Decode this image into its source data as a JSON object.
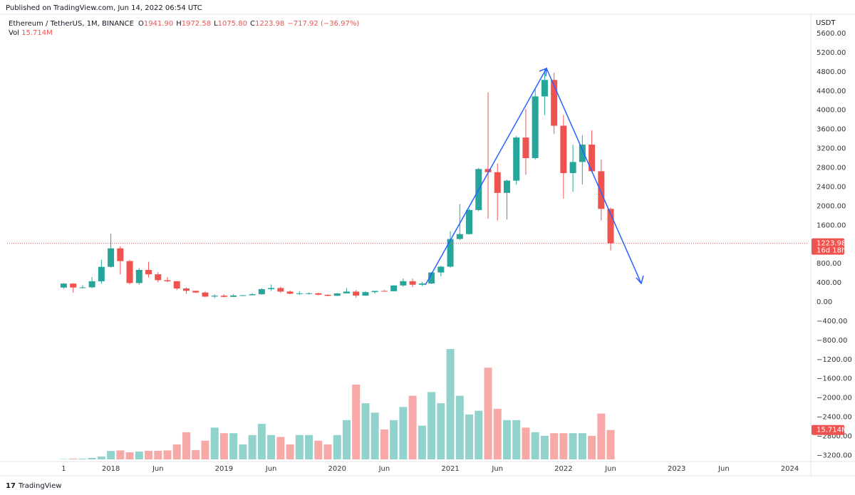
{
  "published": "Published on TradingView.com, Jun 14, 2022 06:54 UTC",
  "brand": "TradingView",
  "chart_data": {
    "type": "candlestick",
    "symbol": "Ethereum / TetherUS, 1M, BINANCE",
    "legend_items": [
      {
        "key": "O",
        "value": "1941.90"
      },
      {
        "key": "H",
        "value": "1972.58"
      },
      {
        "key": "L",
        "value": "1075.80"
      },
      {
        "key": "C",
        "value": "1223.98"
      }
    ],
    "change": "−717.92 (−36.97%)",
    "volume_legend": "Vol",
    "last_volume_label": "15.714M",
    "countdown": "16d 18h",
    "currency": "USDT",
    "up_color": "#26a69a",
    "down_color": "#ef5350",
    "volume_up_color": "#92d2cc",
    "volume_down_color": "#f7a9a7",
    "grid": false,
    "x": [
      "2017-08",
      "2017-09",
      "2017-10",
      "2017-11",
      "2017-12",
      "2018-01",
      "2018-02",
      "2018-03",
      "2018-04",
      "2018-05",
      "2018-06",
      "2018-07",
      "2018-08",
      "2018-09",
      "2018-10",
      "2018-11",
      "2018-12",
      "2019-01",
      "2019-02",
      "2019-03",
      "2019-04",
      "2019-05",
      "2019-06",
      "2019-07",
      "2019-08",
      "2019-09",
      "2019-10",
      "2019-11",
      "2019-12",
      "2020-01",
      "2020-02",
      "2020-03",
      "2020-04",
      "2020-05",
      "2020-06",
      "2020-07",
      "2020-08",
      "2020-09",
      "2020-10",
      "2020-11",
      "2020-12",
      "2021-01",
      "2021-02",
      "2021-03",
      "2021-04",
      "2021-05",
      "2021-06",
      "2021-07",
      "2021-08",
      "2021-09",
      "2021-10",
      "2021-11",
      "2021-12",
      "2022-01",
      "2022-02",
      "2022-03",
      "2022-04",
      "2022-05",
      "2022-06"
    ],
    "open": [
      301,
      384,
      302,
      306,
      432,
      733,
      1118,
      853,
      395,
      669,
      578,
      455,
      433,
      283,
      233,
      198,
      113,
      131,
      107,
      136,
      141,
      162,
      268,
      291,
      218,
      172,
      180,
      182,
      152,
      129,
      180,
      217,
      133,
      206,
      231,
      225,
      345,
      434,
      360,
      386,
      616,
      737,
      1314,
      1416,
      1918,
      2773,
      2707,
      2275,
      2531,
      3430,
      3001,
      4288,
      4631,
      3676,
      2688,
      2920,
      3282,
      2727,
      1941.9
    ],
    "high": [
      394,
      394,
      350,
      520,
      881,
      1424,
      1163,
      880,
      707,
      838,
      623,
      516,
      436,
      303,
      233,
      222,
      159,
      160,
      166,
      146,
      185,
      288,
      365,
      320,
      239,
      223,
      199,
      196,
      154,
      185,
      288,
      253,
      227,
      228,
      253,
      347,
      490,
      488,
      420,
      623,
      755,
      1476,
      2041,
      1943,
      2797,
      4372,
      2891,
      2551,
      3466,
      4027,
      4460,
      4868,
      4778,
      3900,
      3282,
      3479,
      3580,
      2970,
      1972.58
    ],
    "low": [
      278,
      197,
      283,
      287,
      380,
      717,
      575,
      366,
      362,
      509,
      410,
      417,
      250,
      167,
      187,
      100,
      82,
      101,
      102,
      124,
      138,
      152,
      230,
      190,
      162,
      151,
      157,
      139,
      117,
      126,
      180,
      86,
      130,
      176,
      216,
      225,
      318,
      308,
      332,
      372,
      534,
      715,
      1292,
      1406,
      1890,
      1736,
      1700,
      1718,
      2450,
      2651,
      2970,
      3900,
      3503,
      2159,
      2300,
      2451,
      2711,
      1700,
      1075.8
    ],
    "close": [
      384,
      302,
      306,
      432,
      733,
      1118,
      853,
      395,
      669,
      578,
      455,
      433,
      283,
      233,
      198,
      113,
      131,
      107,
      136,
      141,
      162,
      268,
      291,
      218,
      172,
      180,
      182,
      152,
      129,
      180,
      217,
      133,
      206,
      231,
      225,
      345,
      434,
      360,
      386,
      616,
      737,
      1314,
      1416,
      1918,
      2773,
      2707,
      2275,
      2531,
      3430,
      3001,
      4288,
      4631,
      3676,
      2688,
      2920,
      3282,
      2727,
      1941.9,
      1223.98
    ],
    "volume": [
      0.2,
      0.4,
      0.4,
      0.8,
      1.5,
      4.5,
      4.8,
      3.8,
      4.2,
      4.6,
      4.6,
      4.8,
      8,
      14.5,
      5,
      10,
      17,
      14,
      14,
      8,
      13,
      19,
      13,
      12,
      8,
      13,
      13,
      10,
      8,
      13,
      21,
      40,
      30,
      25,
      16,
      21,
      28,
      34,
      18,
      36,
      30,
      59,
      34,
      24,
      26,
      49,
      27,
      21,
      21,
      17,
      14.5,
      12.6,
      14,
      14,
      14,
      14,
      12.6,
      24.5,
      15.714
    ],
    "xlim": [
      "2017-02",
      "2024-03"
    ],
    "xticks": [
      {
        "value": "2017-08",
        "label": "1"
      },
      {
        "value": "2018-01",
        "label": "2018"
      },
      {
        "value": "2018-06",
        "label": "Jun"
      },
      {
        "value": "2019-01",
        "label": "2019"
      },
      {
        "value": "2019-06",
        "label": "Jun"
      },
      {
        "value": "2020-01",
        "label": "2020"
      },
      {
        "value": "2020-06",
        "label": "Jun"
      },
      {
        "value": "2021-01",
        "label": "2021"
      },
      {
        "value": "2021-06",
        "label": "Jun"
      },
      {
        "value": "2022-01",
        "label": "2022"
      },
      {
        "value": "2022-06",
        "label": "Jun"
      },
      {
        "value": "2023-01",
        "label": "2023"
      },
      {
        "value": "2023-06",
        "label": "Jun"
      },
      {
        "value": "2024-01",
        "label": "2024"
      }
    ],
    "ylim": [
      -3327,
      5927
    ],
    "yticks": [
      {
        "value": 5600,
        "label": "5600.00"
      },
      {
        "value": 5200,
        "label": "5200.00"
      },
      {
        "value": 4800,
        "label": "4800.00"
      },
      {
        "value": 4400,
        "label": "4400.00"
      },
      {
        "value": 4000,
        "label": "4000.00"
      },
      {
        "value": 3600,
        "label": "3600.00"
      },
      {
        "value": 3200,
        "label": "3200.00"
      },
      {
        "value": 2800,
        "label": "2800.00"
      },
      {
        "value": 2400,
        "label": "2400.00"
      },
      {
        "value": 2000,
        "label": "2000.00"
      },
      {
        "value": 1600,
        "label": "1600.00"
      },
      {
        "value": 800,
        "label": "800.00"
      },
      {
        "value": 400,
        "label": "400.00"
      },
      {
        "value": 0,
        "label": "0.00"
      },
      {
        "value": -400,
        "label": "−400.00"
      },
      {
        "value": -800,
        "label": "−800.00"
      },
      {
        "value": -1200,
        "label": "−1200.00"
      },
      {
        "value": -1600,
        "label": "−1600.00"
      },
      {
        "value": -2000,
        "label": "−2000.00"
      },
      {
        "value": -2400,
        "label": "−2400.00"
      },
      {
        "value": -2800,
        "label": "−2800.00"
      },
      {
        "value": -3200,
        "label": "−3200.00"
      }
    ]
  }
}
